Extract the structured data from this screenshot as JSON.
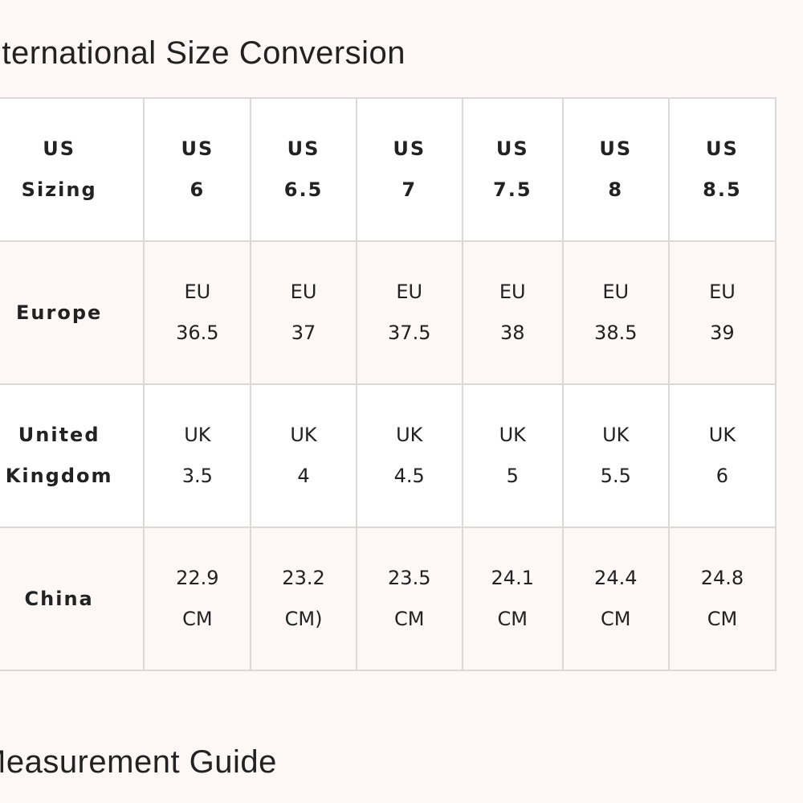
{
  "titles": {
    "conversion": "International Size Conversion",
    "guide": "Measurement Guide"
  },
  "table": {
    "rows": [
      {
        "label": [
          "US",
          "Sizing"
        ],
        "cells": [
          [
            "US",
            "6"
          ],
          [
            "US",
            "6.5"
          ],
          [
            "US",
            "7"
          ],
          [
            "US",
            "7.5"
          ],
          [
            "US",
            "8"
          ],
          [
            "US",
            "8.5"
          ]
        ]
      },
      {
        "label": [
          "Europe"
        ],
        "cells": [
          [
            "EU",
            "36.5"
          ],
          [
            "EU",
            "37"
          ],
          [
            "EU",
            "37.5"
          ],
          [
            "EU",
            "38"
          ],
          [
            "EU",
            "38.5"
          ],
          [
            "EU",
            "39"
          ]
        ]
      },
      {
        "label": [
          "United",
          "Kingdom"
        ],
        "cells": [
          [
            "UK",
            "3.5"
          ],
          [
            "UK",
            "4"
          ],
          [
            "UK",
            "4.5"
          ],
          [
            "UK",
            "5"
          ],
          [
            "UK",
            "5.5"
          ],
          [
            "UK",
            "6"
          ]
        ]
      },
      {
        "label": [
          "China"
        ],
        "cells": [
          [
            "22.9",
            "CM"
          ],
          [
            "23.2",
            "CM)"
          ],
          [
            "23.5",
            "CM"
          ],
          [
            "24.1",
            "CM"
          ],
          [
            "24.4",
            "CM"
          ],
          [
            "24.8",
            "CM"
          ]
        ]
      }
    ]
  }
}
